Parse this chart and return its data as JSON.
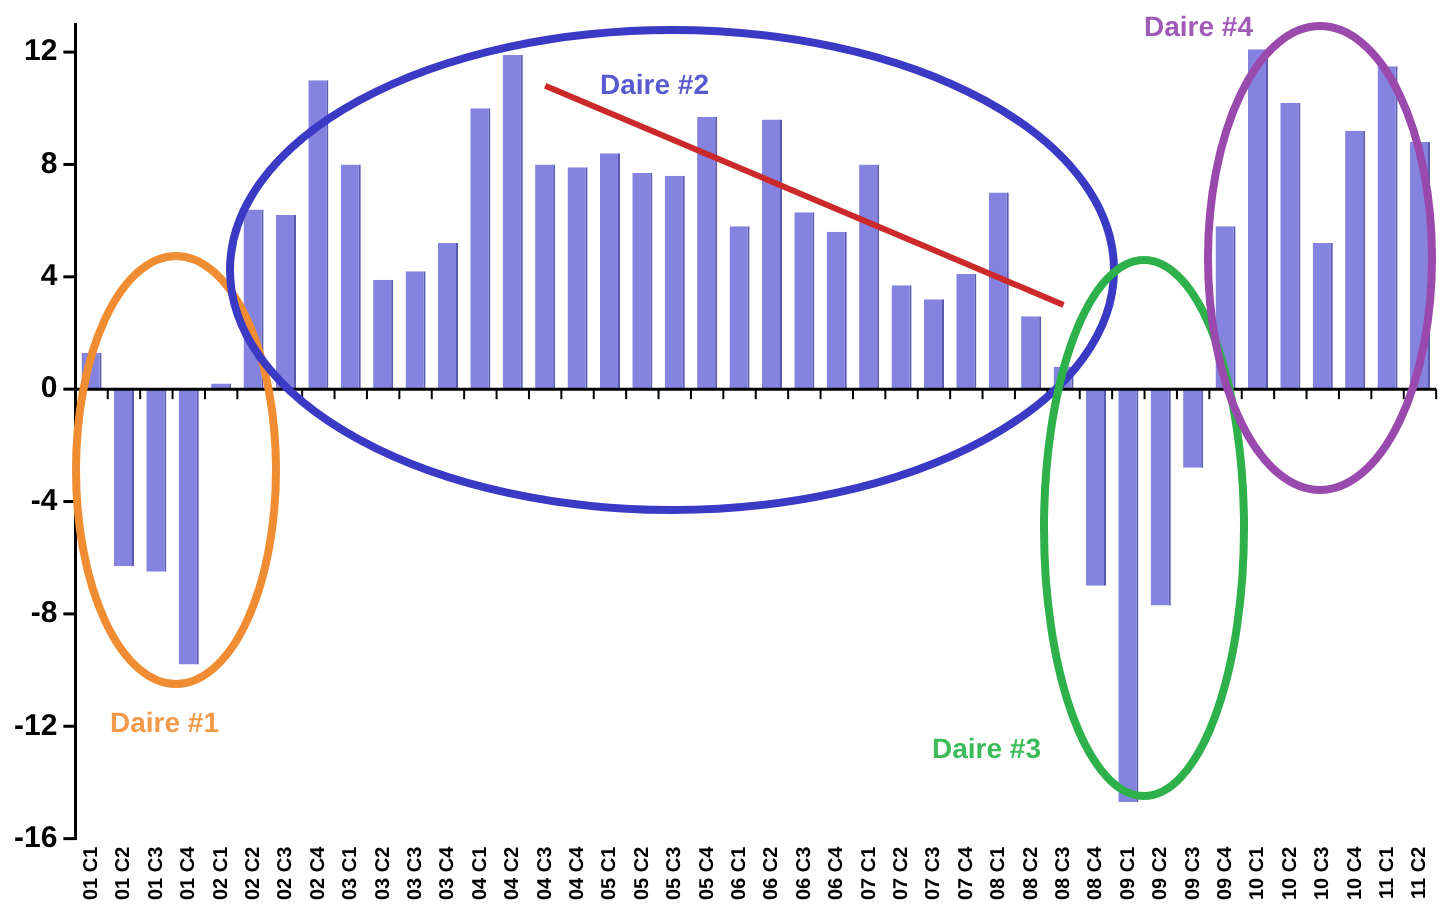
{
  "chart_data": {
    "type": "bar",
    "categories": [
      "01 C1",
      "01 C2",
      "01 C3",
      "01 C4",
      "02 C1",
      "02 C2",
      "02 C3",
      "02 C4",
      "03 C1",
      "03 C2",
      "03 C3",
      "03 C4",
      "04 C1",
      "04 C2",
      "04 C3",
      "04 C4",
      "05 C1",
      "05 C2",
      "05 C3",
      "05 C4",
      "06 C1",
      "06 C2",
      "06 C3",
      "06 C4",
      "07 C1",
      "07 C2",
      "07 C3",
      "07 C4",
      "08 C1",
      "08 C2",
      "08 C3",
      "08 C4",
      "09 C1",
      "09 C2",
      "09 C3",
      "09 C4",
      "10 C1",
      "10 C2",
      "10 C3",
      "10 C4",
      "11 C1",
      "11 C2"
    ],
    "series": [
      {
        "color": "#8484e0",
        "values": [
          1.3,
          -6.3,
          -6.5,
          -9.8,
          0.2,
          6.4,
          6.2,
          11,
          8,
          3.9,
          4.2,
          5.2,
          10,
          11.9,
          8,
          7.9,
          8.4,
          7.7,
          7.6,
          9.7,
          5.8,
          9.6,
          6.3,
          5.6,
          8,
          3.7,
          3.2,
          4.1,
          7,
          2.6,
          0.8,
          -7,
          -14.7,
          -7.7,
          -2.8,
          5.8,
          12.1,
          10.2,
          5.2,
          9.2,
          11.5,
          8.8
        ]
      },
      {
        "type": "line",
        "color": "#cc2a2a",
        "x": [
          "04 C3",
          "08 C3"
        ],
        "values": [
          10.8,
          3.0
        ]
      }
    ],
    "ylim": [
      -16,
      13
    ],
    "yticks": [
      -16,
      -12,
      -8,
      -4,
      0,
      4,
      8,
      12
    ],
    "ref_lines": [
      {
        "axis": "y",
        "value": 0,
        "color": "#000000"
      }
    ],
    "grid": false,
    "legend": false,
    "marker": "none",
    "annotations": [
      "Daire #1",
      "Daire #2",
      "Daire #3",
      "Daire #4"
    ]
  }
}
